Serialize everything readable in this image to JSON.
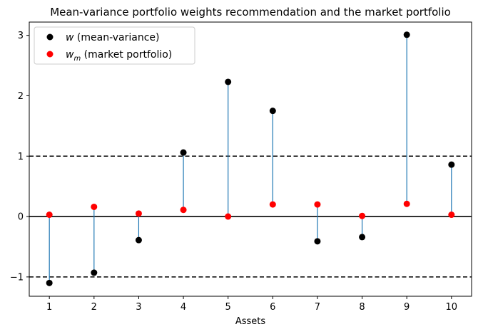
{
  "chart_data": {
    "type": "scatter",
    "title": "Mean-variance portfolio weights recommendation and the market portfolio",
    "xlabel": "Assets",
    "ylabel": "",
    "x": [
      1,
      2,
      3,
      4,
      5,
      6,
      7,
      8,
      9,
      10
    ],
    "xlim": [
      0.55,
      10.45
    ],
    "ylim": [
      -1.32,
      3.22
    ],
    "xticks": [
      "1",
      "2",
      "3",
      "4",
      "5",
      "6",
      "7",
      "8",
      "9",
      "10"
    ],
    "yticks": [
      {
        "value": -1,
        "label": "−1"
      },
      {
        "value": 0,
        "label": "0"
      },
      {
        "value": 1,
        "label": "1"
      },
      {
        "value": 2,
        "label": "2"
      },
      {
        "value": 3,
        "label": "3"
      }
    ],
    "series": [
      {
        "name": "w (mean-variance)",
        "legend_main": "w",
        "legend_sub": "",
        "legend_rest": " (mean-variance)",
        "color": "#000000",
        "values": [
          -1.1,
          -0.93,
          -0.39,
          1.06,
          2.23,
          1.75,
          -0.41,
          -0.34,
          3.01,
          0.86
        ]
      },
      {
        "name": "w_m (market portfolio)",
        "legend_main": "w",
        "legend_sub": "m",
        "legend_rest": " (market portfolio)",
        "color": "#ff0000",
        "values": [
          0.03,
          0.16,
          0.05,
          0.11,
          0.0,
          0.2,
          0.2,
          0.01,
          0.21,
          0.03
        ]
      }
    ],
    "stem_color": "#1f77b4",
    "reference_lines": [
      {
        "y": 1,
        "style": "dashed",
        "color": "#000000"
      },
      {
        "y": -1,
        "style": "dashed",
        "color": "#000000"
      },
      {
        "y": 0,
        "style": "solid",
        "color": "#000000"
      }
    ],
    "legend_position": "upper-left",
    "grid": false
  }
}
